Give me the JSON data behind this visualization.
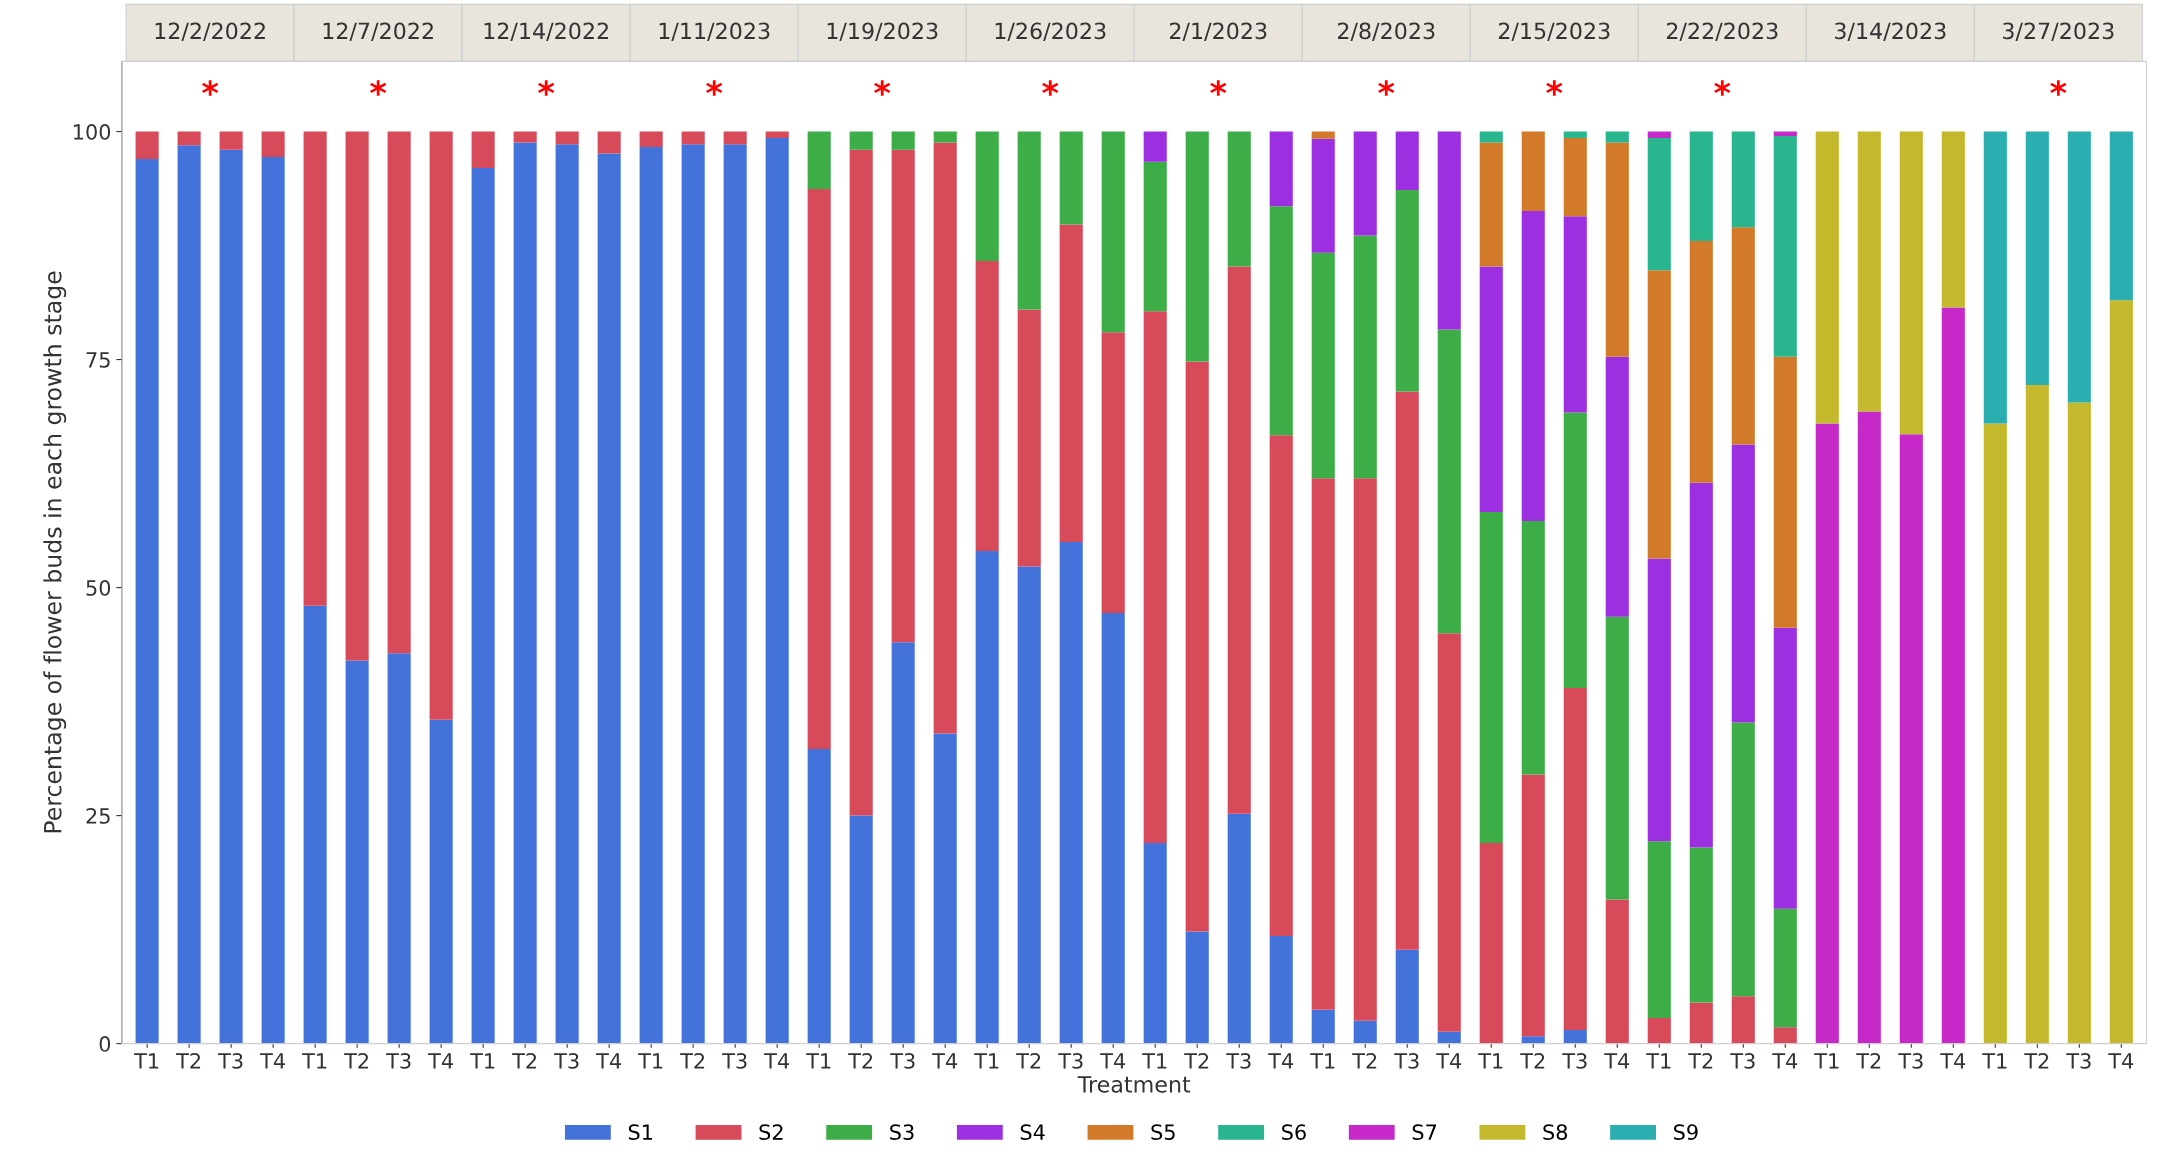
{
  "chart_data": {
    "type": "bar",
    "stacked": true,
    "ylabel": "Percentage of flower buds in each growth stage",
    "xlabel": "Treatment",
    "legend": "bottom",
    "categories": [
      "T1",
      "T2",
      "T3",
      "T4",
      "T1",
      "T2",
      "T3",
      "T4",
      "T1",
      "T2",
      "T3",
      "T4",
      "T1",
      "T2",
      "T3",
      "T4",
      "T1",
      "T2",
      "T3",
      "T4",
      "T1",
      "T2",
      "T3",
      "T4",
      "T1",
      "T2",
      "T3",
      "T4",
      "T1",
      "T2",
      "T3",
      "T4",
      "T1",
      "T2",
      "T3",
      "T4",
      "T1",
      "T2",
      "T3",
      "T4",
      "T1",
      "T2",
      "T3",
      "T4",
      "T1",
      "T2",
      "T3",
      "T4"
    ],
    "ylim": [
      0,
      107.7
    ],
    "yticks": [
      0,
      25,
      50,
      75,
      100
    ],
    "annotations": [
      "12/2/2022",
      "12/7/2022",
      "12/14/2022",
      "1/11/2023",
      "1/19/2023",
      "1/26/2023",
      "2/1/2023",
      "2/8/2023",
      "2/15/2023",
      "2/22/2023",
      "3/14/2023",
      "3/27/2023",
      "*",
      "*",
      "*",
      "*",
      "*",
      "*",
      "*",
      "*",
      "*",
      "*",
      "*"
    ],
    "series": [
      {
        "name": "S1",
        "color": "#4472db",
        "values": [
          97,
          98.5,
          98,
          97.2,
          48,
          42,
          42.8,
          35.5,
          96,
          98.8,
          98.6,
          97.6,
          98.3,
          98.6,
          98.6,
          99.3,
          32.3,
          25,
          44,
          34,
          54,
          52.3,
          55,
          47.2,
          22,
          12.3,
          25.2,
          11.8,
          3.7,
          2.5,
          10.3,
          1.3,
          null,
          0.8,
          1.5,
          null,
          null,
          null,
          null,
          null,
          null,
          null,
          null,
          null,
          null,
          null,
          null,
          null
        ]
      },
      {
        "name": "S2",
        "color": "#d64a5a",
        "values": [
          3,
          1.5,
          2,
          2.8,
          52,
          58,
          57.2,
          64.5,
          4,
          1.2,
          1.4,
          2.4,
          1.7,
          1.4,
          1.4,
          0.7,
          61.4,
          73,
          54,
          64.8,
          31.8,
          28.2,
          34.8,
          30.8,
          58.3,
          62.5,
          60,
          54.9,
          58.3,
          59.5,
          61.2,
          43.7,
          22,
          28.7,
          37.5,
          15.8,
          2.8,
          4.5,
          5.2,
          1.8,
          null,
          null,
          null,
          null,
          null,
          null,
          null,
          null
        ]
      },
      {
        "name": "S3",
        "color": "#3cad47",
        "values": [
          null,
          null,
          null,
          null,
          null,
          null,
          null,
          null,
          null,
          null,
          null,
          null,
          null,
          null,
          null,
          null,
          6.3,
          2,
          2,
          1.2,
          14.2,
          19.5,
          10.2,
          22,
          16.4,
          25.2,
          14.8,
          25.1,
          24.7,
          26.6,
          22.1,
          33.3,
          36.3,
          27.8,
          30.2,
          31,
          19.4,
          17,
          30,
          13,
          null,
          null,
          null,
          null,
          null,
          null,
          null,
          null
        ]
      },
      {
        "name": "S4",
        "color": "#9c2fe0",
        "values": [
          null,
          null,
          null,
          null,
          null,
          null,
          null,
          null,
          null,
          null,
          null,
          null,
          null,
          null,
          null,
          null,
          null,
          null,
          null,
          null,
          null,
          null,
          null,
          null,
          3.3,
          null,
          null,
          8.2,
          12.5,
          11.4,
          6.4,
          21.7,
          26.9,
          34,
          21.5,
          28.5,
          31,
          40,
          30.5,
          30.8,
          null,
          null,
          null,
          null,
          null,
          null,
          null,
          null
        ]
      },
      {
        "name": "S5",
        "color": "#d27a2a",
        "values": [
          null,
          null,
          null,
          null,
          null,
          null,
          null,
          null,
          null,
          null,
          null,
          null,
          null,
          null,
          null,
          null,
          null,
          null,
          null,
          null,
          null,
          null,
          null,
          null,
          null,
          null,
          null,
          null,
          0.8,
          null,
          null,
          null,
          13.6,
          8.7,
          8.6,
          23.5,
          31.6,
          26.5,
          23.8,
          29.7,
          null,
          null,
          null,
          null,
          null,
          null,
          null,
          null
        ]
      },
      {
        "name": "S6",
        "color": "#29b58e",
        "values": [
          null,
          null,
          null,
          null,
          null,
          null,
          null,
          null,
          null,
          null,
          null,
          null,
          null,
          null,
          null,
          null,
          null,
          null,
          null,
          null,
          null,
          null,
          null,
          null,
          null,
          null,
          null,
          null,
          null,
          null,
          null,
          null,
          1.2,
          null,
          0.7,
          1.2,
          14.5,
          12,
          10.5,
          24.2,
          null,
          null,
          null,
          null,
          null,
          null,
          null,
          null
        ]
      },
      {
        "name": "S7",
        "color": "#c52ac9",
        "values": [
          null,
          null,
          null,
          null,
          null,
          null,
          null,
          null,
          null,
          null,
          null,
          null,
          null,
          null,
          null,
          null,
          null,
          null,
          null,
          null,
          null,
          null,
          null,
          null,
          null,
          null,
          null,
          null,
          null,
          null,
          null,
          null,
          null,
          null,
          null,
          null,
          0.7,
          null,
          null,
          0.5,
          68,
          69.3,
          66.8,
          80.7,
          null,
          null,
          null,
          null
        ]
      },
      {
        "name": "S8",
        "color": "#c4b92c",
        "values": [
          null,
          null,
          null,
          null,
          null,
          null,
          null,
          null,
          null,
          null,
          null,
          null,
          null,
          null,
          null,
          null,
          null,
          null,
          null,
          null,
          null,
          null,
          null,
          null,
          null,
          null,
          null,
          null,
          null,
          null,
          null,
          null,
          null,
          null,
          null,
          null,
          null,
          null,
          null,
          null,
          32,
          30.7,
          33.2,
          19.3,
          68,
          72.2,
          70.3,
          81.5
        ]
      },
      {
        "name": "S9",
        "color": "#2aaeb0",
        "values": [
          null,
          null,
          null,
          null,
          null,
          null,
          null,
          null,
          null,
          null,
          null,
          null,
          null,
          null,
          null,
          null,
          null,
          null,
          null,
          null,
          null,
          null,
          null,
          null,
          null,
          null,
          null,
          null,
          null,
          null,
          null,
          null,
          null,
          null,
          null,
          null,
          null,
          null,
          null,
          null,
          null,
          null,
          null,
          null,
          32,
          27.8,
          29.7,
          18.5
        ]
      }
    ]
  }
}
